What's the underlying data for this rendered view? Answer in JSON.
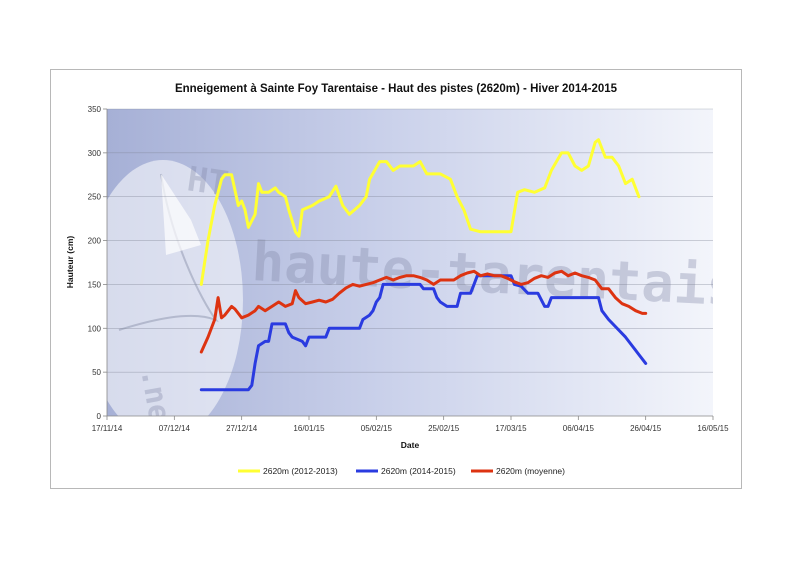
{
  "chart_data": {
    "type": "line",
    "title": "Enneigement à Sainte Foy Tarentaise - Haut des pistes (2620m) - Hiver 2014-2015",
    "xlabel": "Date",
    "ylabel": "Hauteur (cm)",
    "ylim": [
      0,
      350
    ],
    "yticks": [
      0,
      50,
      100,
      150,
      200,
      250,
      300,
      350
    ],
    "xlim": [
      "2014-11-17",
      "2015-05-16"
    ],
    "xticks": [
      "17/11/14",
      "07/12/14",
      "27/12/14",
      "16/01/15",
      "05/02/15",
      "25/02/15",
      "17/03/15",
      "06/04/15",
      "26/04/15",
      "16/05/15"
    ],
    "grid": true,
    "legend_position": "bottom",
    "watermark": "haute-tarentaise.net",
    "series": [
      {
        "name": "2620m (2012-2013)",
        "color": "#ffff33",
        "points": [
          [
            "2014-12-15",
            150
          ],
          [
            "2014-12-17",
            200
          ],
          [
            "2014-12-19",
            240
          ],
          [
            "2014-12-21",
            270
          ],
          [
            "2014-12-22",
            275
          ],
          [
            "2014-12-24",
            275
          ],
          [
            "2014-12-26",
            240
          ],
          [
            "2014-12-27",
            245
          ],
          [
            "2014-12-28",
            235
          ],
          [
            "2014-12-29",
            215
          ],
          [
            "2014-12-31",
            230
          ],
          [
            "2015-01-01",
            265
          ],
          [
            "2015-01-02",
            255
          ],
          [
            "2015-01-04",
            255
          ],
          [
            "2015-01-06",
            260
          ],
          [
            "2015-01-07",
            255
          ],
          [
            "2015-01-09",
            250
          ],
          [
            "2015-01-10",
            235
          ],
          [
            "2015-01-12",
            210
          ],
          [
            "2015-01-13",
            205
          ],
          [
            "2015-01-14",
            235
          ],
          [
            "2015-01-17",
            240
          ],
          [
            "2015-01-19",
            245
          ],
          [
            "2015-01-22",
            250
          ],
          [
            "2015-01-24",
            262
          ],
          [
            "2015-01-26",
            240
          ],
          [
            "2015-01-28",
            230
          ],
          [
            "2015-01-31",
            240
          ],
          [
            "2015-02-02",
            250
          ],
          [
            "2015-02-03",
            270
          ],
          [
            "2015-02-06",
            290
          ],
          [
            "2015-02-08",
            290
          ],
          [
            "2015-02-10",
            280
          ],
          [
            "2015-02-12",
            285
          ],
          [
            "2015-02-16",
            285
          ],
          [
            "2015-02-18",
            290
          ],
          [
            "2015-02-20",
            276
          ],
          [
            "2015-02-24",
            276
          ],
          [
            "2015-02-27",
            270
          ],
          [
            "2015-03-01",
            250
          ],
          [
            "2015-03-03",
            235
          ],
          [
            "2015-03-05",
            213
          ],
          [
            "2015-03-08",
            210
          ],
          [
            "2015-03-17",
            210
          ],
          [
            "2015-03-19",
            255
          ],
          [
            "2015-03-21",
            258
          ],
          [
            "2015-03-24",
            255
          ],
          [
            "2015-03-27",
            260
          ],
          [
            "2015-03-29",
            280
          ],
          [
            "2015-04-01",
            300
          ],
          [
            "2015-04-03",
            300
          ],
          [
            "2015-04-05",
            285
          ],
          [
            "2015-04-07",
            280
          ],
          [
            "2015-04-09",
            285
          ],
          [
            "2015-04-11",
            312
          ],
          [
            "2015-04-12",
            315
          ],
          [
            "2015-04-14",
            295
          ],
          [
            "2015-04-16",
            295
          ],
          [
            "2015-04-18",
            285
          ],
          [
            "2015-04-20",
            265
          ],
          [
            "2015-04-22",
            270
          ],
          [
            "2015-04-24",
            250
          ]
        ]
      },
      {
        "name": "2620m (2014-2015)",
        "color": "#2a3be0",
        "points": [
          [
            "2014-12-15",
            30
          ],
          [
            "2014-12-29",
            30
          ],
          [
            "2014-12-30",
            35
          ],
          [
            "2014-12-31",
            60
          ],
          [
            "2015-01-01",
            80
          ],
          [
            "2015-01-03",
            85
          ],
          [
            "2015-01-04",
            85
          ],
          [
            "2015-01-05",
            105
          ],
          [
            "2015-01-09",
            105
          ],
          [
            "2015-01-10",
            95
          ],
          [
            "2015-01-11",
            90
          ],
          [
            "2015-01-14",
            85
          ],
          [
            "2015-01-15",
            80
          ],
          [
            "2015-01-16",
            90
          ],
          [
            "2015-01-21",
            90
          ],
          [
            "2015-01-22",
            100
          ],
          [
            "2015-01-31",
            100
          ],
          [
            "2015-02-01",
            110
          ],
          [
            "2015-02-03",
            115
          ],
          [
            "2015-02-04",
            120
          ],
          [
            "2015-02-05",
            130
          ],
          [
            "2015-02-06",
            135
          ],
          [
            "2015-02-07",
            150
          ],
          [
            "2015-02-18",
            150
          ],
          [
            "2015-02-19",
            145
          ],
          [
            "2015-02-22",
            145
          ],
          [
            "2015-02-23",
            135
          ],
          [
            "2015-02-24",
            130
          ],
          [
            "2015-02-26",
            125
          ],
          [
            "2015-03-01",
            125
          ],
          [
            "2015-03-02",
            140
          ],
          [
            "2015-03-05",
            140
          ],
          [
            "2015-03-06",
            150
          ],
          [
            "2015-03-07",
            160
          ],
          [
            "2015-03-17",
            160
          ],
          [
            "2015-03-18",
            150
          ],
          [
            "2015-03-20",
            148
          ],
          [
            "2015-03-22",
            140
          ],
          [
            "2015-03-25",
            140
          ],
          [
            "2015-03-27",
            125
          ],
          [
            "2015-03-28",
            125
          ],
          [
            "2015-03-29",
            135
          ],
          [
            "2015-04-12",
            135
          ],
          [
            "2015-04-13",
            120
          ],
          [
            "2015-04-15",
            110
          ],
          [
            "2015-04-20",
            90
          ],
          [
            "2015-04-24",
            70
          ],
          [
            "2015-04-26",
            60
          ]
        ]
      },
      {
        "name": "2620m (moyenne)",
        "color": "#dd3311",
        "points": [
          [
            "2014-12-15",
            73
          ],
          [
            "2014-12-17",
            90
          ],
          [
            "2014-12-19",
            110
          ],
          [
            "2014-12-20",
            135
          ],
          [
            "2014-12-21",
            112
          ],
          [
            "2014-12-22",
            115
          ],
          [
            "2014-12-24",
            125
          ],
          [
            "2014-12-25",
            122
          ],
          [
            "2014-12-27",
            112
          ],
          [
            "2014-12-29",
            115
          ],
          [
            "2014-12-31",
            120
          ],
          [
            "2015-01-01",
            125
          ],
          [
            "2015-01-03",
            120
          ],
          [
            "2015-01-05",
            125
          ],
          [
            "2015-01-07",
            130
          ],
          [
            "2015-01-09",
            125
          ],
          [
            "2015-01-11",
            128
          ],
          [
            "2015-01-12",
            143
          ],
          [
            "2015-01-13",
            135
          ],
          [
            "2015-01-15",
            128
          ],
          [
            "2015-01-17",
            130
          ],
          [
            "2015-01-19",
            132
          ],
          [
            "2015-01-21",
            130
          ],
          [
            "2015-01-23",
            133
          ],
          [
            "2015-01-25",
            140
          ],
          [
            "2015-01-27",
            146
          ],
          [
            "2015-01-29",
            150
          ],
          [
            "2015-01-31",
            148
          ],
          [
            "2015-02-02",
            150
          ],
          [
            "2015-02-04",
            152
          ],
          [
            "2015-02-06",
            155
          ],
          [
            "2015-02-08",
            158
          ],
          [
            "2015-02-10",
            155
          ],
          [
            "2015-02-12",
            158
          ],
          [
            "2015-02-14",
            160
          ],
          [
            "2015-02-16",
            160
          ],
          [
            "2015-02-18",
            158
          ],
          [
            "2015-02-20",
            155
          ],
          [
            "2015-02-22",
            150
          ],
          [
            "2015-02-24",
            155
          ],
          [
            "2015-02-26",
            155
          ],
          [
            "2015-02-28",
            155
          ],
          [
            "2015-03-02",
            160
          ],
          [
            "2015-03-04",
            163
          ],
          [
            "2015-03-06",
            165
          ],
          [
            "2015-03-08",
            160
          ],
          [
            "2015-03-10",
            162
          ],
          [
            "2015-03-12",
            160
          ],
          [
            "2015-03-14",
            160
          ],
          [
            "2015-03-16",
            157
          ],
          [
            "2015-03-18",
            153
          ],
          [
            "2015-03-20",
            150
          ],
          [
            "2015-03-22",
            152
          ],
          [
            "2015-03-24",
            157
          ],
          [
            "2015-03-26",
            160
          ],
          [
            "2015-03-28",
            158
          ],
          [
            "2015-03-30",
            163
          ],
          [
            "2015-04-01",
            165
          ],
          [
            "2015-04-03",
            160
          ],
          [
            "2015-04-05",
            163
          ],
          [
            "2015-04-07",
            160
          ],
          [
            "2015-04-09",
            158
          ],
          [
            "2015-04-11",
            155
          ],
          [
            "2015-04-13",
            145
          ],
          [
            "2015-04-15",
            145
          ],
          [
            "2015-04-17",
            135
          ],
          [
            "2015-04-19",
            128
          ],
          [
            "2015-04-21",
            125
          ],
          [
            "2015-04-23",
            120
          ],
          [
            "2015-04-25",
            117
          ],
          [
            "2015-04-26",
            117
          ]
        ]
      }
    ]
  }
}
